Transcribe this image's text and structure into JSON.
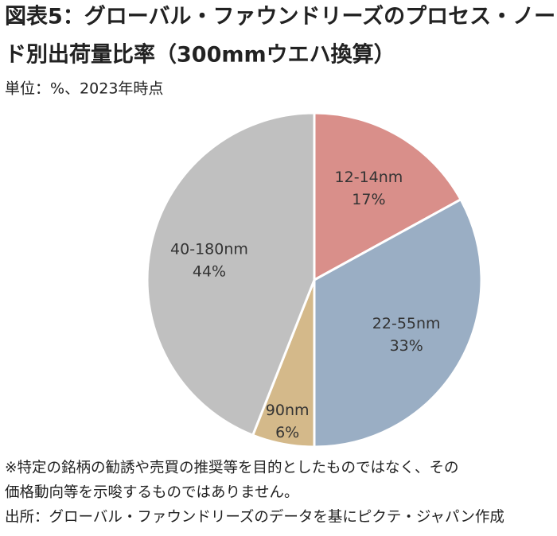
{
  "chart_data": {
    "type": "pie",
    "title": [
      "図表5：グローバル・ファウンドリーズのプロセス・ノー",
      "ド別出荷量比率（300mmウエハ換算）"
    ],
    "subtitle": "単位：%、2023年時点",
    "categories": [
      "12-14nm",
      "22-55nm",
      "90nm",
      "40-180nm"
    ],
    "values": [
      17,
      33,
      6,
      44
    ],
    "value_labels": [
      "17%",
      "33%",
      "6%",
      "44%"
    ],
    "colors": [
      "#d98f8a",
      "#9aaec4",
      "#d4b98a",
      "#c0c0c0"
    ],
    "notes": [
      "※特定の銘柄の勧誘や売買の推奨等を目的としたものではなく、その",
      "価格動向等を示唆するものではありません。",
      "出所：グローバル・ファウンドリーズのデータを基にピクテ・ジャパン作成"
    ]
  }
}
